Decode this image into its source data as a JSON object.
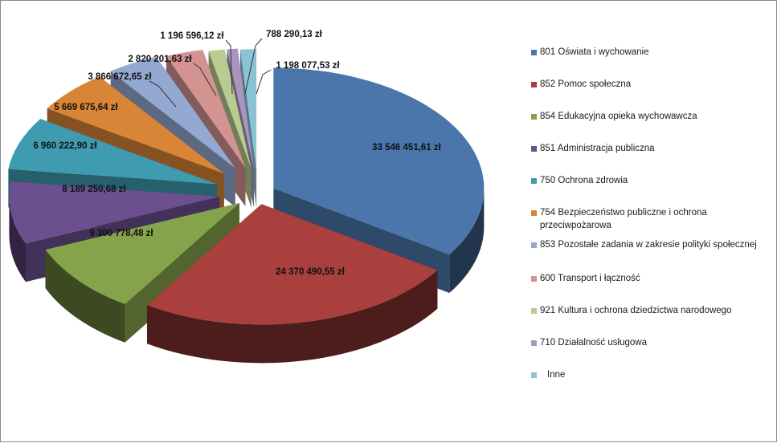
{
  "chart_data": {
    "type": "pie",
    "style": "3d-exploded",
    "title": "",
    "slices": [
      {
        "category": "801 Oświata i wychowanie",
        "value": 33546451.61,
        "label": "33 546 451,61 zł",
        "color": "#4a76ab"
      },
      {
        "category": "852 Pomoc społeczna",
        "value": 24370490.55,
        "label": "24 370 490,55 zł",
        "color": "#a9403d"
      },
      {
        "category": "854 Edukacyjna opieka wychowawcza",
        "value": 9300778.48,
        "label": "9 300 778,48 zł",
        "color": "#85a34a"
      },
      {
        "category": "851 Administracja publiczna",
        "value": 8189250.68,
        "label": "8 189 250,68 zł",
        "color": "#6b4f8e"
      },
      {
        "category": "750 Ochrona zdrowia",
        "value": 6960222.9,
        "label": "6 960 222,90 zł",
        "color": "#3f9bb0"
      },
      {
        "category": "754 Bezpieczeństwo publiczne i ochrona przeciwpożarowa",
        "value": 5669675.64,
        "label": "5 669 675,64 zł",
        "color": "#d98537"
      },
      {
        "category": "853 Pozostałe zadania w zakresie polityki społecznej",
        "value": 3866672.65,
        "label": "3 866 672,65 zł",
        "color": "#94a9d1"
      },
      {
        "category": "600 Transport i łączność",
        "value": 2820201.63,
        "label": "2 820 201,63 zł",
        "color": "#d29391"
      },
      {
        "category": "921 Kultura i ochrona dziedzictwa narodowego",
        "value": 1196596.12,
        "label": "1 196 596,12 zł",
        "color": "#b8cc8f"
      },
      {
        "category": "710 Działalność usługowa",
        "value": 788290.13,
        "label": "788 290,13 zł",
        "color": "#a996bf"
      },
      {
        "category": "Inne",
        "value": 1198077.53,
        "label": "1 198 077,53 zł",
        "color": "#8ac3d6"
      }
    ],
    "legend_position": "right"
  }
}
